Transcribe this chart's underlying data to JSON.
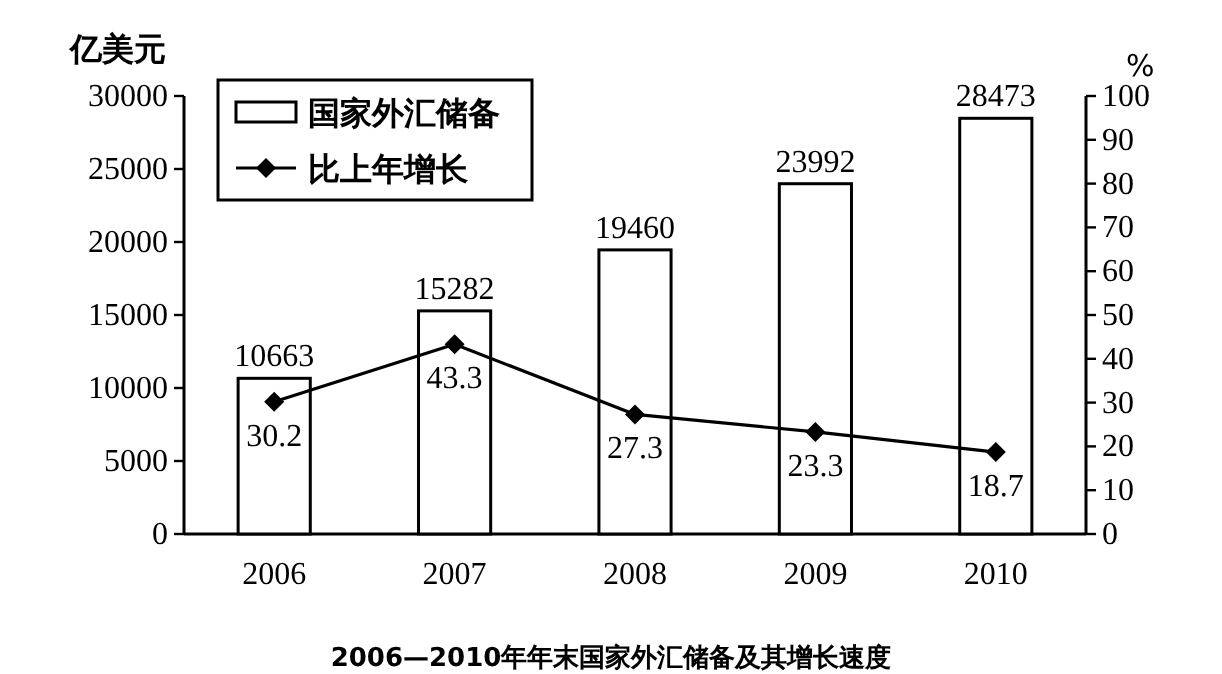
{
  "chart_data": {
    "type": "bar",
    "title": "2006—2010年年末国家外汇储备及其增长速度",
    "ylabel": "亿美元",
    "y2label": "%",
    "categories": [
      "2006",
      "2007",
      "2008",
      "2009",
      "2010"
    ],
    "series": [
      {
        "name": "国家外汇储备",
        "color": "#ffffff",
        "values": [
          10663,
          15282,
          19460,
          23992,
          28473
        ]
      },
      {
        "name": "比上年增长",
        "type": "line",
        "axis": "y2",
        "color": "#000000",
        "values": [
          30.2,
          43.3,
          27.3,
          23.3,
          18.7
        ]
      }
    ],
    "ylim": [
      0,
      30000
    ],
    "yticks": [
      0,
      5000,
      10000,
      15000,
      20000,
      25000,
      30000
    ],
    "y2lim": [
      0,
      100
    ],
    "y2ticks": [
      0,
      10,
      20,
      30,
      40,
      50,
      60,
      70,
      80,
      90,
      100
    ],
    "legend": "top left",
    "data_labels": true,
    "marker": "diamond",
    "line_style": "solid"
  }
}
